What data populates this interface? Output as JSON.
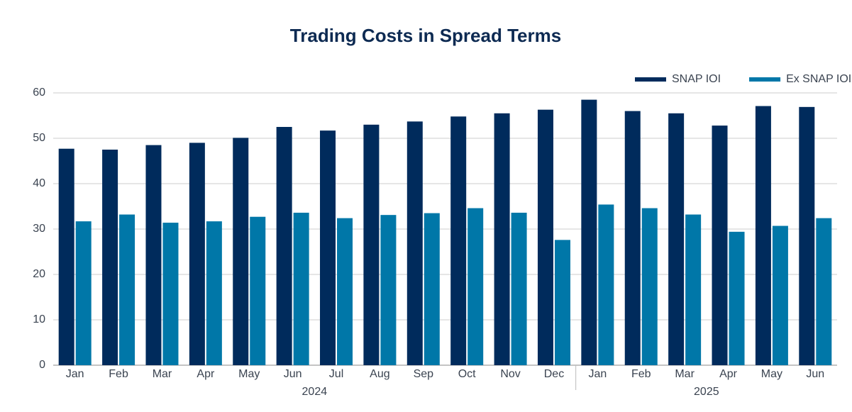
{
  "chart_data": {
    "type": "bar",
    "title": "Trading Costs in Spread Terms",
    "groups": [
      {
        "name": "2024",
        "categories": [
          "Jan",
          "Feb",
          "Mar",
          "Apr",
          "May",
          "Jun",
          "Jul",
          "Aug",
          "Sep",
          "Oct",
          "Nov",
          "Dec"
        ]
      },
      {
        "name": "2025",
        "categories": [
          "Jan",
          "Feb",
          "Mar",
          "Apr",
          "May",
          "Jun"
        ]
      }
    ],
    "series": [
      {
        "name": "SNAP IOI",
        "color": "#002b5c",
        "values": [
          47.7,
          47.5,
          48.5,
          49,
          50.1,
          52.5,
          51.7,
          53,
          53.7,
          54.8,
          55.5,
          56.3,
          58.5,
          56,
          55.5,
          52.8,
          57.1,
          56.9
        ]
      },
      {
        "name": "Ex SNAP IOI",
        "color": "#0077a8",
        "values": [
          31.7,
          33.2,
          31.4,
          31.7,
          32.7,
          33.6,
          32.4,
          33.1,
          33.5,
          34.6,
          33.6,
          27.6,
          35.4,
          34.6,
          33.2,
          29.4,
          30.7,
          32.4
        ]
      }
    ],
    "ylim": [
      0,
      60
    ],
    "yticks": [
      0,
      10,
      20,
      30,
      40,
      50,
      60
    ],
    "grid": true,
    "legend": "top-right"
  }
}
